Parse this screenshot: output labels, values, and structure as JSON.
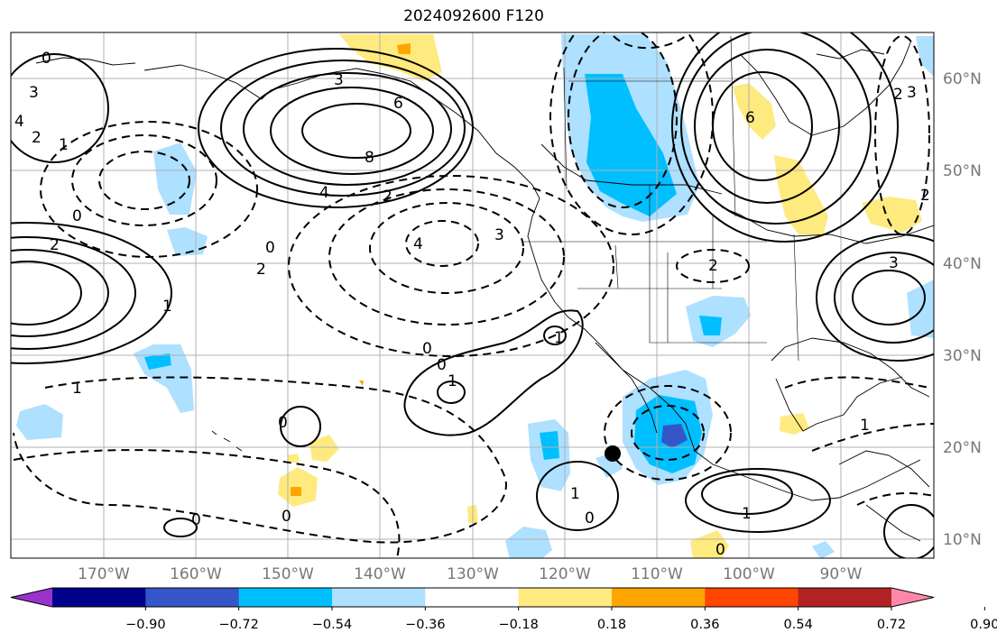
{
  "title": "2024092600 F120",
  "map": {
    "lon_labels": [
      "170°W",
      "160°W",
      "150°W",
      "140°W",
      "130°W",
      "120°W",
      "110°W",
      "100°W",
      "90°W"
    ],
    "lat_labels": [
      "60°N",
      "50°N",
      "40°N",
      "30°N",
      "20°N",
      "10°N"
    ],
    "contour_labels": [
      "0",
      "3",
      "4",
      "2",
      "1",
      "3",
      "6",
      "8",
      "4",
      "2",
      "0",
      "2",
      "1",
      "2",
      "4",
      "3",
      "0",
      "0",
      "1",
      "1",
      "0",
      "0",
      "1",
      "0",
      "2",
      "6",
      "2",
      "3",
      "2",
      "3",
      "1",
      "1",
      "0",
      "0",
      "1",
      "0"
    ],
    "marker": "storm-center"
  },
  "colorbar": {
    "ticks": [
      "−0.90",
      "−0.72",
      "−0.54",
      "−0.36",
      "−0.18",
      "0.18",
      "0.36",
      "0.54",
      "0.72",
      "0.90"
    ],
    "colors": [
      "#9932cc",
      "#00008b",
      "#3456c8",
      "#00bfff",
      "#aee0ff",
      "#ffffff",
      "#ffea80",
      "#ffa500",
      "#ff4500",
      "#b22222",
      "#ff88aa"
    ]
  }
}
